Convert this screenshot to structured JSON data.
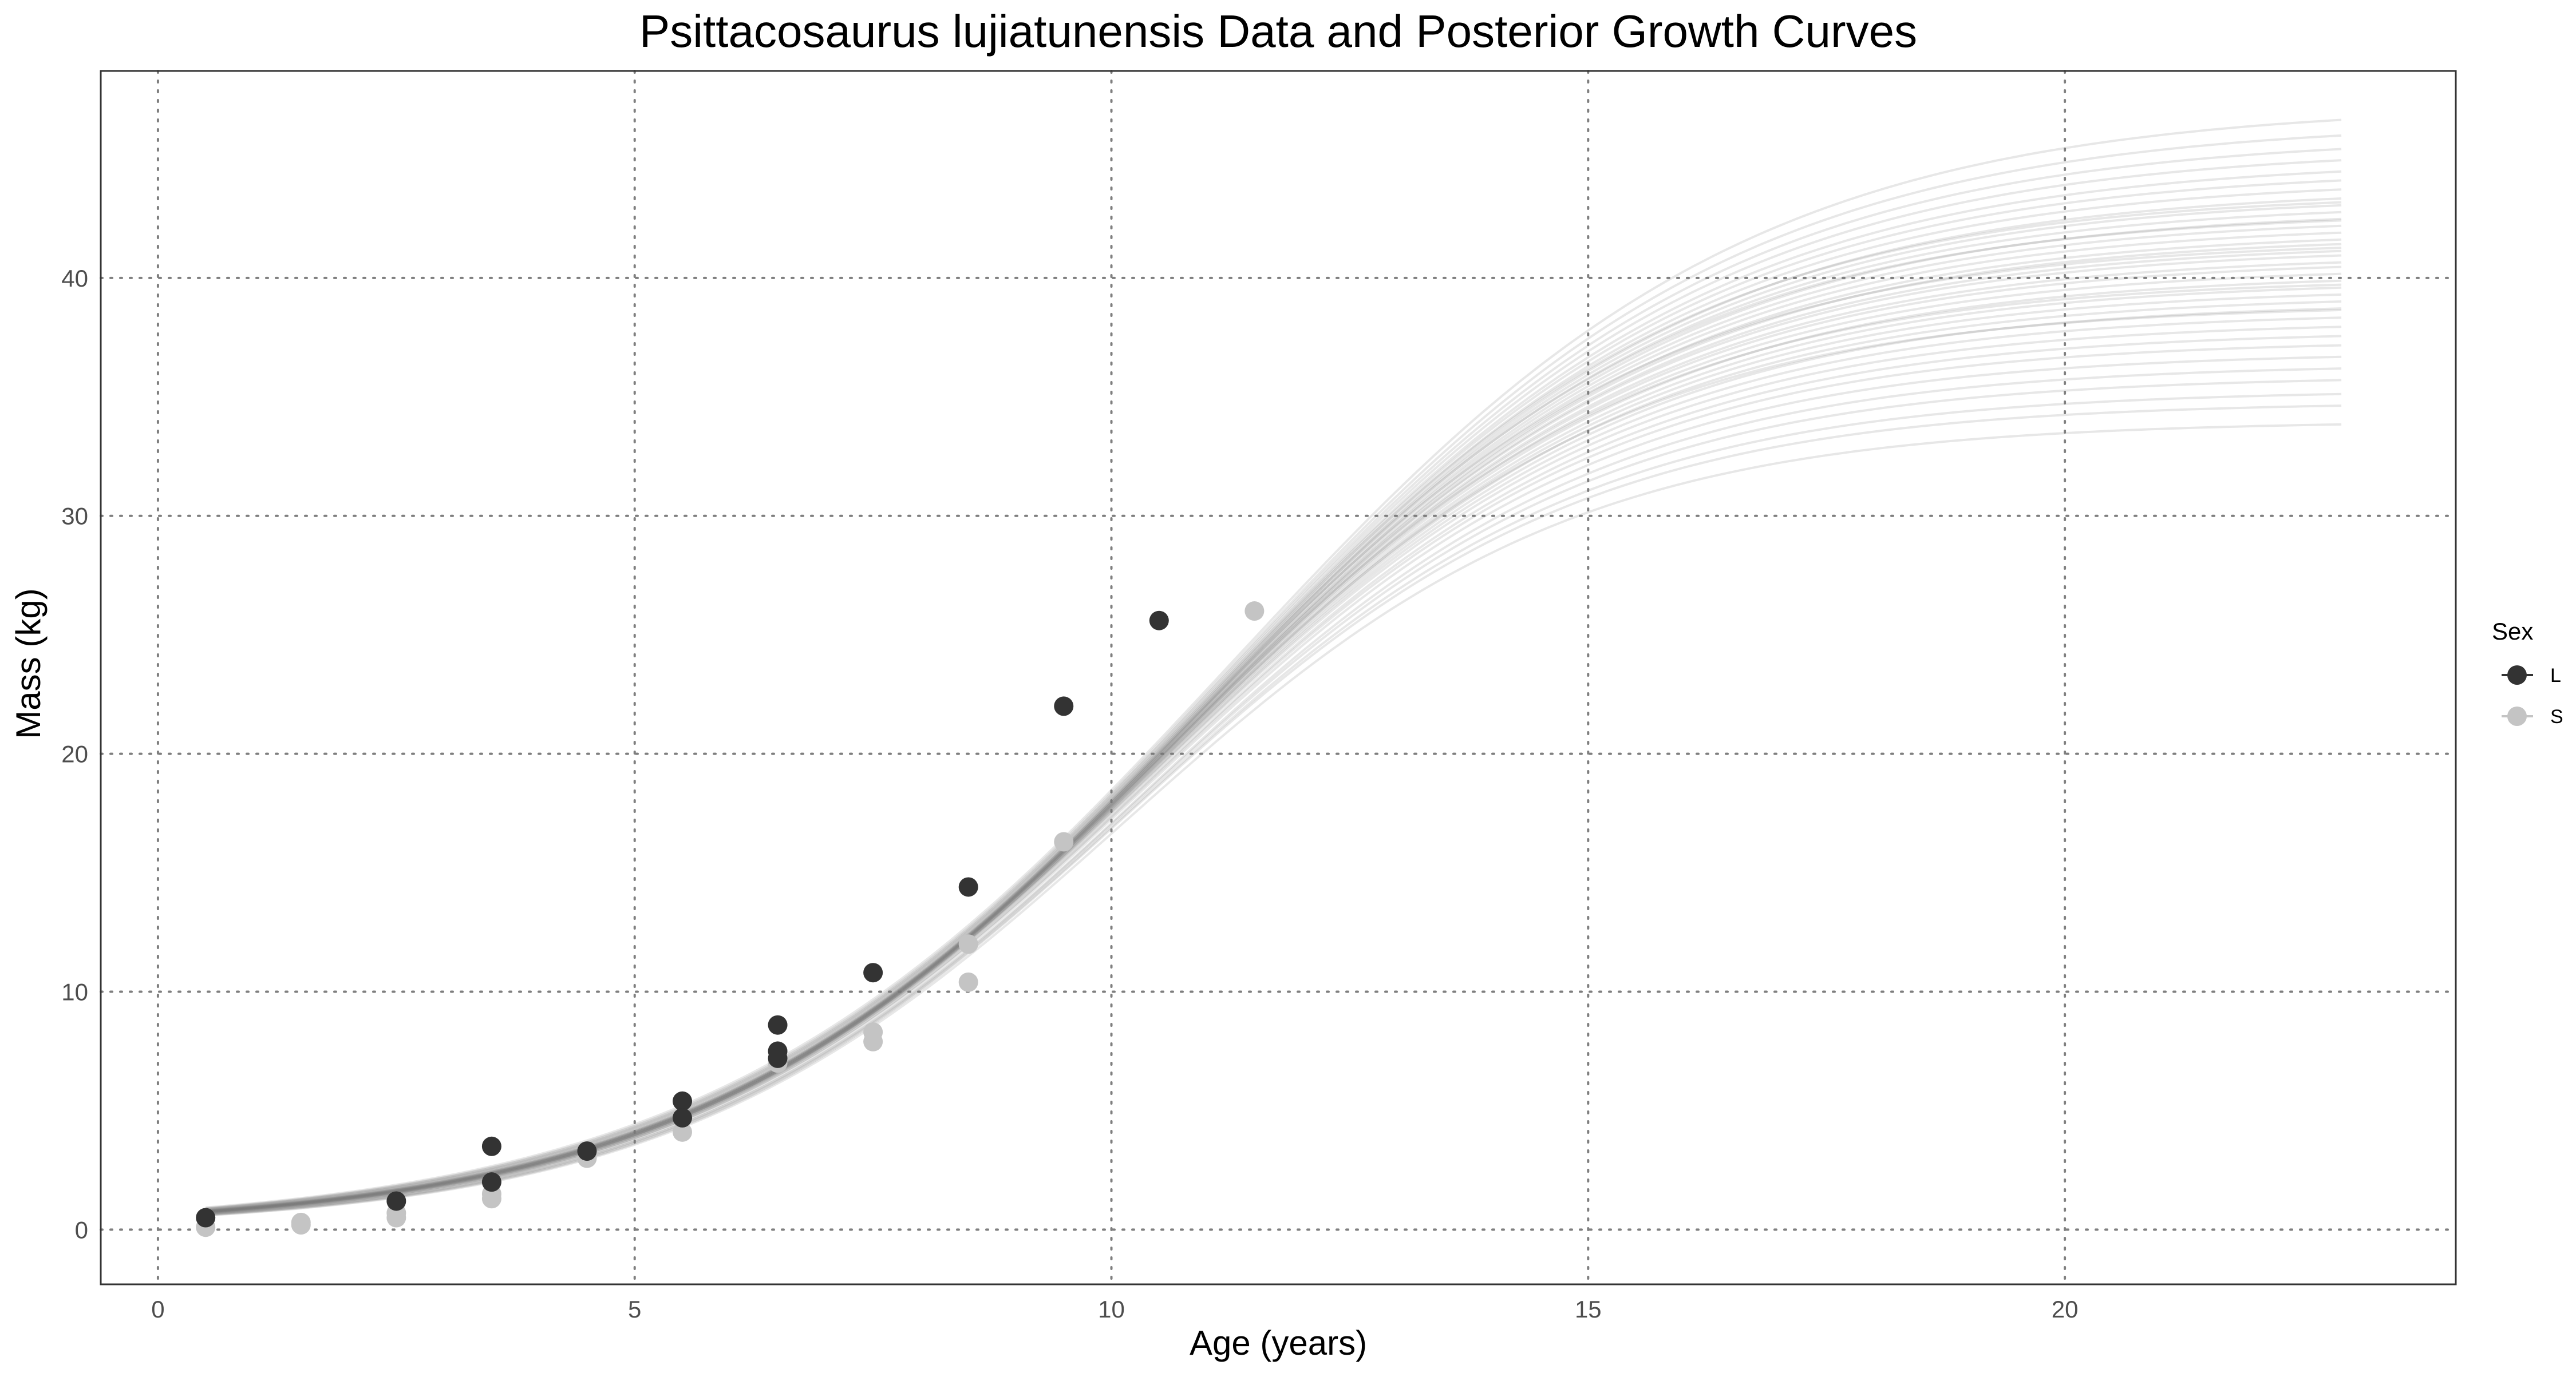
{
  "chart_data": {
    "type": "line",
    "title": "Psittacosaurus lujiatunensis Data and Posterior Growth Curves",
    "xlabel": "Age (years)",
    "ylabel": "Mass (kg)",
    "xlim": [
      -0.6,
      24.1
    ],
    "ylim": [
      -2.3,
      48.7
    ],
    "x_ticks": [
      0,
      5,
      10,
      15,
      20
    ],
    "y_ticks": [
      0,
      10,
      20,
      30,
      40
    ],
    "grid": true,
    "grid_style": "dotted",
    "legend": {
      "title": "Sex",
      "placement": "right",
      "entries": [
        {
          "label": "L",
          "color": "#333333"
        },
        {
          "label": "S",
          "color": "#c4c4c4"
        }
      ]
    },
    "posterior_curves": {
      "description_model": "logistic mass = A / (1 + exp(-k*(age - t0)))",
      "x_range": [
        0.5,
        22.9
      ],
      "color": "#7a7a7a",
      "asymptote_range": [
        34,
        47.5
      ],
      "draws": [
        {
          "A": 34.0,
          "k": 0.42,
          "t0": 10.1
        },
        {
          "A": 34.8,
          "k": 0.418,
          "t0": 10.15
        },
        {
          "A": 35.3,
          "k": 0.415,
          "t0": 10.2
        },
        {
          "A": 35.9,
          "k": 0.412,
          "t0": 10.25
        },
        {
          "A": 36.4,
          "k": 0.41,
          "t0": 10.3
        },
        {
          "A": 36.9,
          "k": 0.408,
          "t0": 10.32
        },
        {
          "A": 37.4,
          "k": 0.405,
          "t0": 10.36
        },
        {
          "A": 37.8,
          "k": 0.403,
          "t0": 10.4
        },
        {
          "A": 38.2,
          "k": 0.401,
          "t0": 10.42
        },
        {
          "A": 38.6,
          "k": 0.399,
          "t0": 10.46
        },
        {
          "A": 39.0,
          "k": 0.397,
          "t0": 10.5
        },
        {
          "A": 39.3,
          "k": 0.396,
          "t0": 10.52
        },
        {
          "A": 39.6,
          "k": 0.395,
          "t0": 10.55
        },
        {
          "A": 39.9,
          "k": 0.394,
          "t0": 10.58
        },
        {
          "A": 40.2,
          "k": 0.393,
          "t0": 10.6
        },
        {
          "A": 40.5,
          "k": 0.392,
          "t0": 10.63
        },
        {
          "A": 40.8,
          "k": 0.391,
          "t0": 10.66
        },
        {
          "A": 41.0,
          "k": 0.39,
          "t0": 10.68
        },
        {
          "A": 41.3,
          "k": 0.389,
          "t0": 10.7
        },
        {
          "A": 41.5,
          "k": 0.388,
          "t0": 10.73
        },
        {
          "A": 41.8,
          "k": 0.387,
          "t0": 10.76
        },
        {
          "A": 42.0,
          "k": 0.386,
          "t0": 10.78
        },
        {
          "A": 42.3,
          "k": 0.385,
          "t0": 10.8
        },
        {
          "A": 42.6,
          "k": 0.384,
          "t0": 10.83
        },
        {
          "A": 42.9,
          "k": 0.383,
          "t0": 10.86
        },
        {
          "A": 43.2,
          "k": 0.382,
          "t0": 10.88
        },
        {
          "A": 43.5,
          "k": 0.381,
          "t0": 10.91
        },
        {
          "A": 43.8,
          "k": 0.38,
          "t0": 10.94
        },
        {
          "A": 44.2,
          "k": 0.378,
          "t0": 10.97
        },
        {
          "A": 44.6,
          "k": 0.376,
          "t0": 11.0
        },
        {
          "A": 45.0,
          "k": 0.374,
          "t0": 11.04
        },
        {
          "A": 45.5,
          "k": 0.372,
          "t0": 11.08
        },
        {
          "A": 46.0,
          "k": 0.37,
          "t0": 11.12
        },
        {
          "A": 46.6,
          "k": 0.368,
          "t0": 11.17
        },
        {
          "A": 47.3,
          "k": 0.365,
          "t0": 11.22
        },
        {
          "A": 40.0,
          "k": 0.4,
          "t0": 10.55
        },
        {
          "A": 41.6,
          "k": 0.395,
          "t0": 10.7
        },
        {
          "A": 42.8,
          "k": 0.39,
          "t0": 10.84
        },
        {
          "A": 38.9,
          "k": 0.405,
          "t0": 10.45
        },
        {
          "A": 43.6,
          "k": 0.386,
          "t0": 10.9
        }
      ]
    },
    "series": [
      {
        "name": "L",
        "color": "#333333",
        "points": [
          {
            "x": 0.5,
            "y": 0.5
          },
          {
            "x": 2.5,
            "y": 1.2
          },
          {
            "x": 3.5,
            "y": 3.5
          },
          {
            "x": 3.5,
            "y": 2.0
          },
          {
            "x": 4.5,
            "y": 3.3
          },
          {
            "x": 5.5,
            "y": 5.4
          },
          {
            "x": 5.5,
            "y": 4.7
          },
          {
            "x": 6.5,
            "y": 8.6
          },
          {
            "x": 6.5,
            "y": 7.5
          },
          {
            "x": 6.5,
            "y": 7.2
          },
          {
            "x": 7.5,
            "y": 10.8
          },
          {
            "x": 8.5,
            "y": 14.4
          },
          {
            "x": 9.5,
            "y": 22.0
          },
          {
            "x": 10.5,
            "y": 25.6
          }
        ]
      },
      {
        "name": "S",
        "color": "#c4c4c4",
        "points": [
          {
            "x": 0.5,
            "y": 0.1
          },
          {
            "x": 1.5,
            "y": 0.2
          },
          {
            "x": 1.5,
            "y": 0.3
          },
          {
            "x": 2.5,
            "y": 0.5
          },
          {
            "x": 2.5,
            "y": 0.7
          },
          {
            "x": 3.5,
            "y": 1.3
          },
          {
            "x": 3.5,
            "y": 1.5
          },
          {
            "x": 4.5,
            "y": 3.0
          },
          {
            "x": 5.5,
            "y": 4.1
          },
          {
            "x": 6.5,
            "y": 7.0
          },
          {
            "x": 7.5,
            "y": 8.3
          },
          {
            "x": 7.5,
            "y": 7.9
          },
          {
            "x": 8.5,
            "y": 12.0
          },
          {
            "x": 8.5,
            "y": 10.4
          },
          {
            "x": 9.5,
            "y": 16.3
          },
          {
            "x": 11.5,
            "y": 26.0
          }
        ]
      }
    ]
  }
}
